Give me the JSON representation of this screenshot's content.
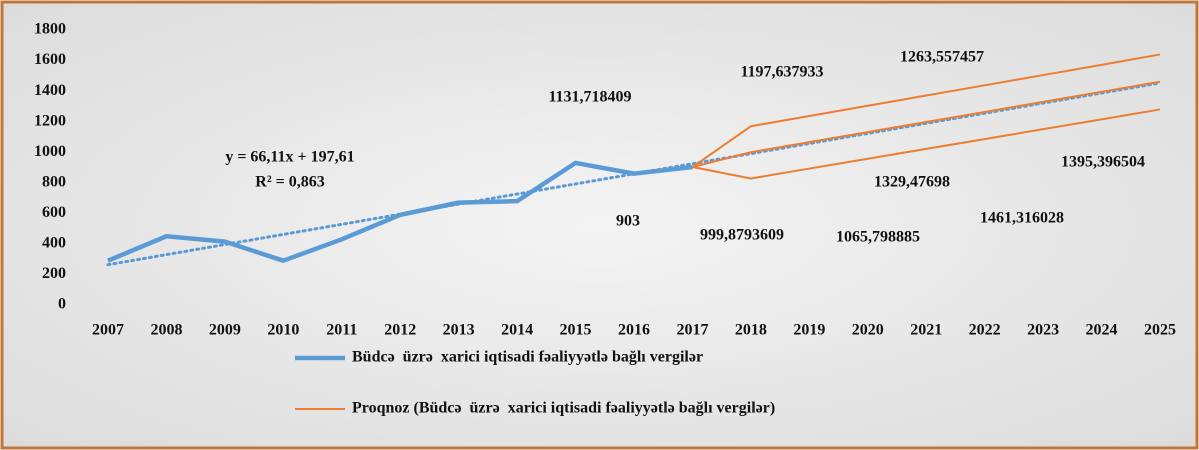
{
  "chart_data": {
    "type": "line",
    "categories": [
      "2007",
      "2008",
      "2009",
      "2010",
      "2011",
      "2012",
      "2013",
      "2014",
      "2015",
      "2016",
      "2017",
      "2018",
      "2019",
      "2020",
      "2021",
      "2022",
      "2023",
      "2024",
      "2025"
    ],
    "series": [
      {
        "name": "Büdcə  üzrə  xarici iqtisadi fəaliyyətlə bağlı vergilər",
        "color": "#5b9bd5",
        "values": [
          290,
          450,
          415,
          290,
          430,
          590,
          670,
          680,
          930,
          860,
          903,
          null,
          null,
          null,
          null,
          null,
          null,
          null,
          null
        ]
      },
      {
        "name": "Proqnoz (Büdcə  üzrə  xarici iqtisadi fəaliyyətlə bağlı vergilər)",
        "color": "#ed7d31",
        "values": [
          null,
          null,
          null,
          null,
          null,
          null,
          null,
          null,
          null,
          null,
          903,
          999.8793609,
          1065.798885,
          1131.718409,
          1197.637933,
          1263.557457,
          1329.47698,
          1395.396504,
          1461.316028
        ],
        "value_labels": [
          null,
          null,
          null,
          null,
          null,
          null,
          null,
          null,
          null,
          null,
          "903",
          "999,8793609",
          "1065,798885",
          "1131,718409",
          "1197,637933",
          "1263,557457",
          "1329,47698",
          "1395,396504",
          "1461,316028"
        ]
      },
      {
        "color": "#ed7d31",
        "values": [
          null,
          null,
          null,
          null,
          null,
          null,
          null,
          null,
          null,
          null,
          903,
          1170,
          1237,
          1304,
          1371,
          1438,
          1505,
          1572,
          1640
        ]
      },
      {
        "color": "#ed7d31",
        "values": [
          null,
          null,
          null,
          null,
          null,
          null,
          null,
          null,
          null,
          null,
          903,
          828,
          893,
          957,
          1022,
          1086,
          1151,
          1215,
          1280
        ]
      }
    ],
    "trendline": {
      "color": "#5b9bd5",
      "slope": 66.11,
      "intercept": 197.61,
      "equation": "y = 66,11x + 197,61",
      "r_squared": 0.863,
      "r_squared_label": "R² = 0,863"
    },
    "ylim": [
      0,
      1800
    ],
    "yticks": [
      0,
      200,
      400,
      600,
      800,
      1000,
      1200,
      1400,
      1600,
      1800
    ],
    "legend": "bottom"
  }
}
